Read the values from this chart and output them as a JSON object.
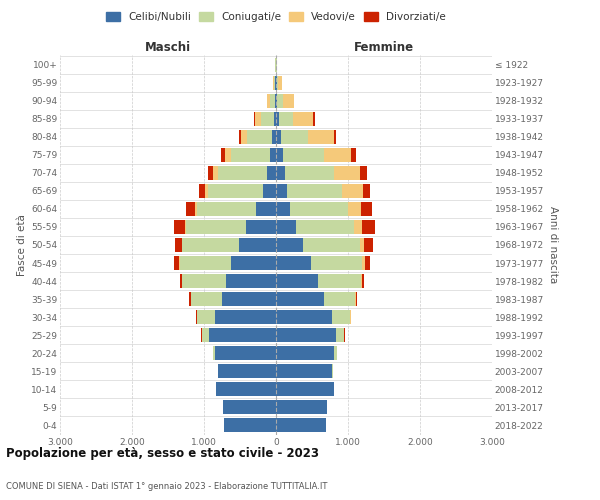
{
  "age_groups": [
    "0-4",
    "5-9",
    "10-14",
    "15-19",
    "20-24",
    "25-29",
    "30-34",
    "35-39",
    "40-44",
    "45-49",
    "50-54",
    "55-59",
    "60-64",
    "65-69",
    "70-74",
    "75-79",
    "80-84",
    "85-89",
    "90-94",
    "95-99",
    "100+"
  ],
  "birth_years": [
    "2018-2022",
    "2013-2017",
    "2008-2012",
    "2003-2007",
    "1998-2002",
    "1993-1997",
    "1988-1992",
    "1983-1987",
    "1978-1982",
    "1973-1977",
    "1968-1972",
    "1963-1967",
    "1958-1962",
    "1953-1957",
    "1948-1952",
    "1943-1947",
    "1938-1942",
    "1933-1937",
    "1928-1932",
    "1923-1927",
    "≤ 1922"
  ],
  "males": {
    "celibi": [
      720,
      730,
      830,
      800,
      850,
      930,
      850,
      750,
      700,
      620,
      520,
      420,
      280,
      180,
      120,
      80,
      50,
      30,
      20,
      10,
      5
    ],
    "coniugati": [
      0,
      0,
      5,
      5,
      30,
      100,
      250,
      430,
      600,
      720,
      780,
      830,
      820,
      760,
      680,
      550,
      350,
      180,
      60,
      15,
      5
    ],
    "vedovi": [
      0,
      0,
      0,
      0,
      0,
      0,
      0,
      5,
      5,
      5,
      10,
      15,
      30,
      50,
      70,
      80,
      80,
      80,
      40,
      10,
      2
    ],
    "divorziati": [
      0,
      0,
      0,
      0,
      0,
      5,
      10,
      20,
      30,
      70,
      90,
      150,
      120,
      80,
      70,
      50,
      30,
      10,
      5,
      0,
      0
    ]
  },
  "females": {
    "nubili": [
      690,
      710,
      800,
      780,
      810,
      830,
      780,
      670,
      580,
      480,
      380,
      280,
      200,
      150,
      130,
      100,
      70,
      40,
      20,
      10,
      5
    ],
    "coniugate": [
      0,
      0,
      5,
      10,
      40,
      120,
      250,
      430,
      600,
      720,
      780,
      810,
      800,
      760,
      680,
      560,
      380,
      200,
      80,
      20,
      5
    ],
    "vedove": [
      0,
      0,
      0,
      0,
      0,
      0,
      5,
      5,
      10,
      30,
      60,
      100,
      180,
      300,
      360,
      380,
      350,
      280,
      150,
      50,
      10
    ],
    "divorziate": [
      0,
      0,
      0,
      0,
      0,
      5,
      10,
      20,
      30,
      80,
      130,
      180,
      150,
      100,
      100,
      70,
      40,
      20,
      5,
      0,
      0
    ]
  },
  "colors": {
    "celibi": "#3d6fa5",
    "coniugati": "#c5d9a0",
    "vedovi": "#f5c97a",
    "divorziati": "#cc2200"
  },
  "title": "Popolazione per età, sesso e stato civile - 2023",
  "subtitle": "COMUNE DI SIENA - Dati ISTAT 1° gennaio 2023 - Elaborazione TUTTITALIA.IT",
  "xlabel_left": "Maschi",
  "xlabel_right": "Femmine",
  "ylabel_left": "Fasce di età",
  "ylabel_right": "Anni di nascita",
  "xlim": 3000,
  "bg_color": "#ffffff",
  "grid_color": "#cccccc",
  "legend_labels": [
    "Celibi/Nubili",
    "Coniugati/e",
    "Vedovi/e",
    "Divorziati/e"
  ]
}
